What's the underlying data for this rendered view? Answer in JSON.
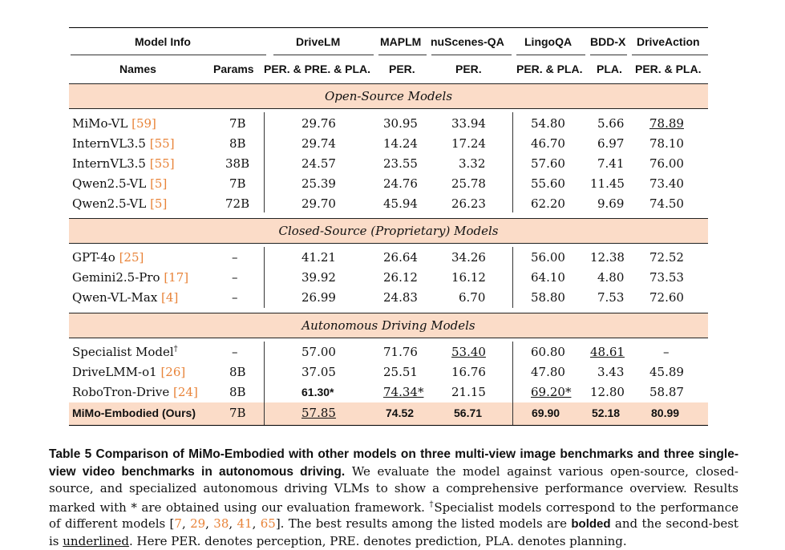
{
  "table": {
    "header_top": {
      "model_info": "Model Info",
      "drivelm": "DriveLM",
      "maplm": "MAPLM",
      "nuscenes": "nuScenes-QA",
      "lingoqa": "LingoQA",
      "bddx": "BDD-X",
      "driveaction": "DriveAction"
    },
    "header_sub": {
      "names": "Names",
      "params": "Params",
      "drivelm": "PER. & PRE. & PLA.",
      "maplm": "PER.",
      "nuscenes": "PER.",
      "lingoqa": "PER. & PLA.",
      "bddx": "PLA.",
      "driveaction": "PER. & PLA."
    },
    "sections": [
      {
        "title": "Open-Source Models",
        "rows": [
          {
            "name": "MiMo-VL ",
            "cite": "[59]",
            "params": "7B",
            "drivelm": "29.76",
            "maplm": "30.95",
            "nuscenes": "33.94",
            "lingoqa": "54.80",
            "bddx": "5.66",
            "driveaction": "78.89"
          },
          {
            "name": "InternVL3.5 ",
            "cite": "[55]",
            "params": "8B",
            "drivelm": "29.74",
            "maplm": "14.24",
            "nuscenes": "17.24",
            "lingoqa": "46.70",
            "bddx": "6.97",
            "driveaction": "78.10"
          },
          {
            "name": "InternVL3.5 ",
            "cite": "[55]",
            "params": "38B",
            "drivelm": "24.57",
            "maplm": "23.55",
            "nuscenes": "3.32",
            "lingoqa": "57.60",
            "bddx": "7.41",
            "driveaction": "76.00"
          },
          {
            "name": "Qwen2.5-VL ",
            "cite": "[5]",
            "params": "7B",
            "drivelm": "25.39",
            "maplm": "24.76",
            "nuscenes": "25.78",
            "lingoqa": "55.60",
            "bddx": "11.45",
            "driveaction": "73.40"
          },
          {
            "name": "Qwen2.5-VL ",
            "cite": "[5]",
            "params": "72B",
            "drivelm": "29.70",
            "maplm": "45.94",
            "nuscenes": "26.23",
            "lingoqa": "62.20",
            "bddx": "9.69",
            "driveaction": "74.50"
          }
        ]
      },
      {
        "title": "Closed-Source (Proprietary) Models",
        "rows": [
          {
            "name": "GPT-4o ",
            "cite": "[25]",
            "params": "–",
            "drivelm": "41.21",
            "maplm": "26.64",
            "nuscenes": "34.26",
            "lingoqa": "56.00",
            "bddx": "12.38",
            "driveaction": "72.52"
          },
          {
            "name": "Gemini2.5-Pro ",
            "cite": "[17]",
            "params": "–",
            "drivelm": "39.92",
            "maplm": "26.12",
            "nuscenes": "16.12",
            "lingoqa": "64.10",
            "bddx": "4.80",
            "driveaction": "73.53"
          },
          {
            "name": "Qwen-VL-Max ",
            "cite": "[4]",
            "params": "–",
            "drivelm": "26.99",
            "maplm": "24.83",
            "nuscenes": "6.70",
            "lingoqa": "58.80",
            "bddx": "7.53",
            "driveaction": "72.60"
          }
        ]
      },
      {
        "title": "Autonomous Driving Models",
        "rows": [
          {
            "name": "Specialist Model",
            "sup": "†",
            "cite": "",
            "params": "–",
            "drivelm": "57.00",
            "maplm": "71.76",
            "nuscenes": "53.40",
            "lingoqa": "60.80",
            "bddx": "48.61",
            "driveaction": "–"
          },
          {
            "name": "DriveLMM-o1 ",
            "cite": "[26]",
            "params": "8B",
            "drivelm": "37.05",
            "maplm": "25.51",
            "nuscenes": "16.76",
            "lingoqa": "47.80",
            "bddx": "3.43",
            "driveaction": "45.89"
          },
          {
            "name": "RoboTron-Drive ",
            "cite": "[24]",
            "params": "8B",
            "drivelm": "61.30*",
            "maplm": "74.34*",
            "nuscenes": "21.15",
            "lingoqa": "69.20*",
            "bddx": "12.80",
            "driveaction": "58.87"
          }
        ]
      }
    ],
    "ours": {
      "name": "MiMo-Embodied (Ours)",
      "params": "7B",
      "drivelm": "57.85",
      "maplm": "74.52",
      "nuscenes": "56.71",
      "lingoqa": "69.90",
      "bddx": "52.18",
      "driveaction": "80.99"
    }
  },
  "caption": {
    "lead": "Table 5  Comparison of MiMo-Embodied with other models on three multi-view image benchmarks and three single-view video benchmarks in autonomous driving.",
    "t1": " We evaluate the model against various open-source, closed-source, and specialized autonomous driving VLMs to show a comprehensive performance overview. Results marked with * are obtained using our evaluation framework. ",
    "dagger": "†",
    "t2": "Specialist models correspond to the performance of different models [",
    "c1": "7",
    "c2": "29",
    "c3": "38",
    "c4": "41",
    "c5": "65",
    "t3": "]. The best results among the listed models are ",
    "bolded": "bolded",
    "t4": " and the second-best is ",
    "underlined": "underlined",
    "t5": ". Here PER. denotes perception, PRE. denotes prediction, PLA. denotes planning."
  }
}
